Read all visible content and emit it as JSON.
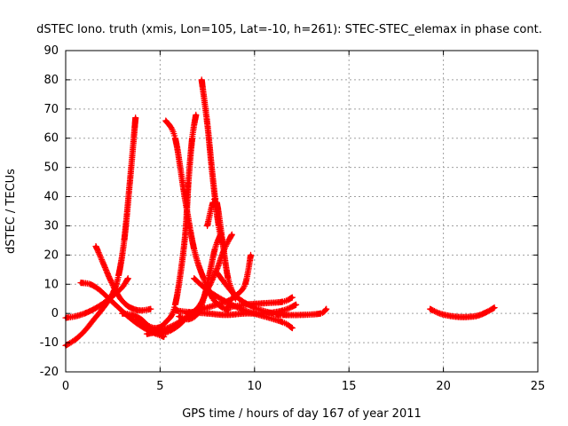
{
  "chart_data": {
    "type": "scatter",
    "title": "dSTEC Iono. truth (xmis, Lon=105, Lat=-10, h=261): STEC-STEC_elemax in phase cont.",
    "xlabel": "GPS time / hours of day 167 of year 2011",
    "ylabel": "dSTEC  / TECUs",
    "xlim": [
      0,
      25
    ],
    "ylim": [
      -20,
      90
    ],
    "xticks": [
      0,
      5,
      10,
      15,
      20,
      25
    ],
    "yticks": [
      -20,
      -10,
      0,
      10,
      20,
      30,
      40,
      50,
      60,
      70,
      80,
      90
    ],
    "grid": true,
    "marker": "plus",
    "color": "#ff0000",
    "series": [
      {
        "x": [
          0.0,
          0.5,
          1.0,
          1.5,
          2.0,
          2.5,
          2.8,
          3.1,
          3.4,
          3.7
        ],
        "y": [
          -11,
          -9,
          -6,
          -2,
          2,
          7,
          13,
          25,
          45,
          67
        ]
      },
      {
        "x": [
          0.0,
          0.5,
          1.0,
          1.5,
          2.0,
          2.5,
          3.0,
          3.3
        ],
        "y": [
          -1.5,
          -1,
          0,
          1.5,
          3.5,
          6,
          9,
          12
        ]
      },
      {
        "x": [
          0.8,
          1.3,
          1.8,
          2.3,
          2.8,
          3.3,
          3.8,
          4.3,
          4.8,
          5.2
        ],
        "y": [
          10.5,
          10,
          8,
          5,
          2,
          -1,
          -3.5,
          -5.5,
          -7,
          -8
        ]
      },
      {
        "x": [
          1.6,
          2.0,
          2.4,
          2.8,
          3.2,
          3.6,
          4.0,
          4.5
        ],
        "y": [
          23,
          17,
          11,
          6,
          3,
          1.5,
          1,
          1.5
        ]
      },
      {
        "x": [
          3.0,
          3.5,
          4.0,
          4.5,
          5.0,
          5.5,
          6.0,
          6.5,
          7.0
        ],
        "y": [
          0,
          -0.5,
          -2,
          -5,
          -7,
          -6,
          -4,
          -1,
          1
        ]
      },
      {
        "x": [
          3.8,
          4.3,
          4.8,
          5.3,
          5.8,
          6.3,
          6.5,
          6.7,
          6.9
        ],
        "y": [
          -2,
          -4,
          -5,
          -3,
          3,
          25,
          45,
          60,
          68
        ]
      },
      {
        "x": [
          5.3,
          5.8,
          6.3,
          6.8,
          7.3,
          7.8,
          8.3,
          8.6
        ],
        "y": [
          66,
          60,
          40,
          22,
          12,
          5,
          2,
          1
        ]
      },
      {
        "x": [
          6.0,
          6.5,
          7.0,
          7.3,
          7.6,
          7.9,
          8.2
        ],
        "y": [
          -1,
          -2,
          0,
          5,
          13,
          22,
          27
        ]
      },
      {
        "x": [
          7.2,
          7.5,
          7.7,
          7.9,
          8.1,
          8.3
        ],
        "y": [
          80,
          65,
          52,
          40,
          30,
          24
        ]
      },
      {
        "x": [
          7.5,
          7.8,
          8.0,
          8.3,
          8.6,
          9.0
        ],
        "y": [
          30,
          38,
          38,
          25,
          12,
          5
        ]
      },
      {
        "x": [
          4.3,
          5.0,
          6.0,
          7.0,
          7.5,
          8.0,
          8.4,
          8.8
        ],
        "y": [
          -7,
          -6,
          -3,
          2,
          8,
          15,
          22,
          27
        ]
      },
      {
        "x": [
          6.4,
          7.0,
          7.5,
          8.0,
          8.5,
          9.0,
          9.5,
          9.8
        ],
        "y": [
          0,
          1,
          2,
          3,
          4,
          6,
          10,
          20
        ]
      },
      {
        "x": [
          6.8,
          7.5,
          8.5,
          9.5,
          10.5,
          11.5,
          12.0
        ],
        "y": [
          12,
          8,
          4,
          1,
          -1,
          -3,
          -5
        ]
      },
      {
        "x": [
          5.8,
          6.5,
          7.5,
          8.5,
          9.5,
          10.5,
          11.5,
          12.2
        ],
        "y": [
          1,
          0.5,
          0,
          -0.5,
          0,
          0,
          1,
          3
        ]
      },
      {
        "x": [
          8.0,
          9.0,
          10.0,
          11.0,
          11.5,
          12.5,
          13.5,
          13.8
        ],
        "y": [
          14,
          6,
          2,
          0,
          -0.5,
          -0.5,
          0,
          1.5
        ]
      },
      {
        "x": [
          8.5,
          9.5,
          10.5,
          11.5,
          12.0
        ],
        "y": [
          2,
          3,
          3.5,
          4,
          5.5
        ]
      },
      {
        "x": [
          19.3,
          19.8,
          20.3,
          20.8,
          21.3,
          21.8,
          22.3,
          22.7
        ],
        "y": [
          1.5,
          0,
          -0.8,
          -1.2,
          -1.2,
          -0.8,
          0.5,
          2
        ]
      }
    ]
  }
}
